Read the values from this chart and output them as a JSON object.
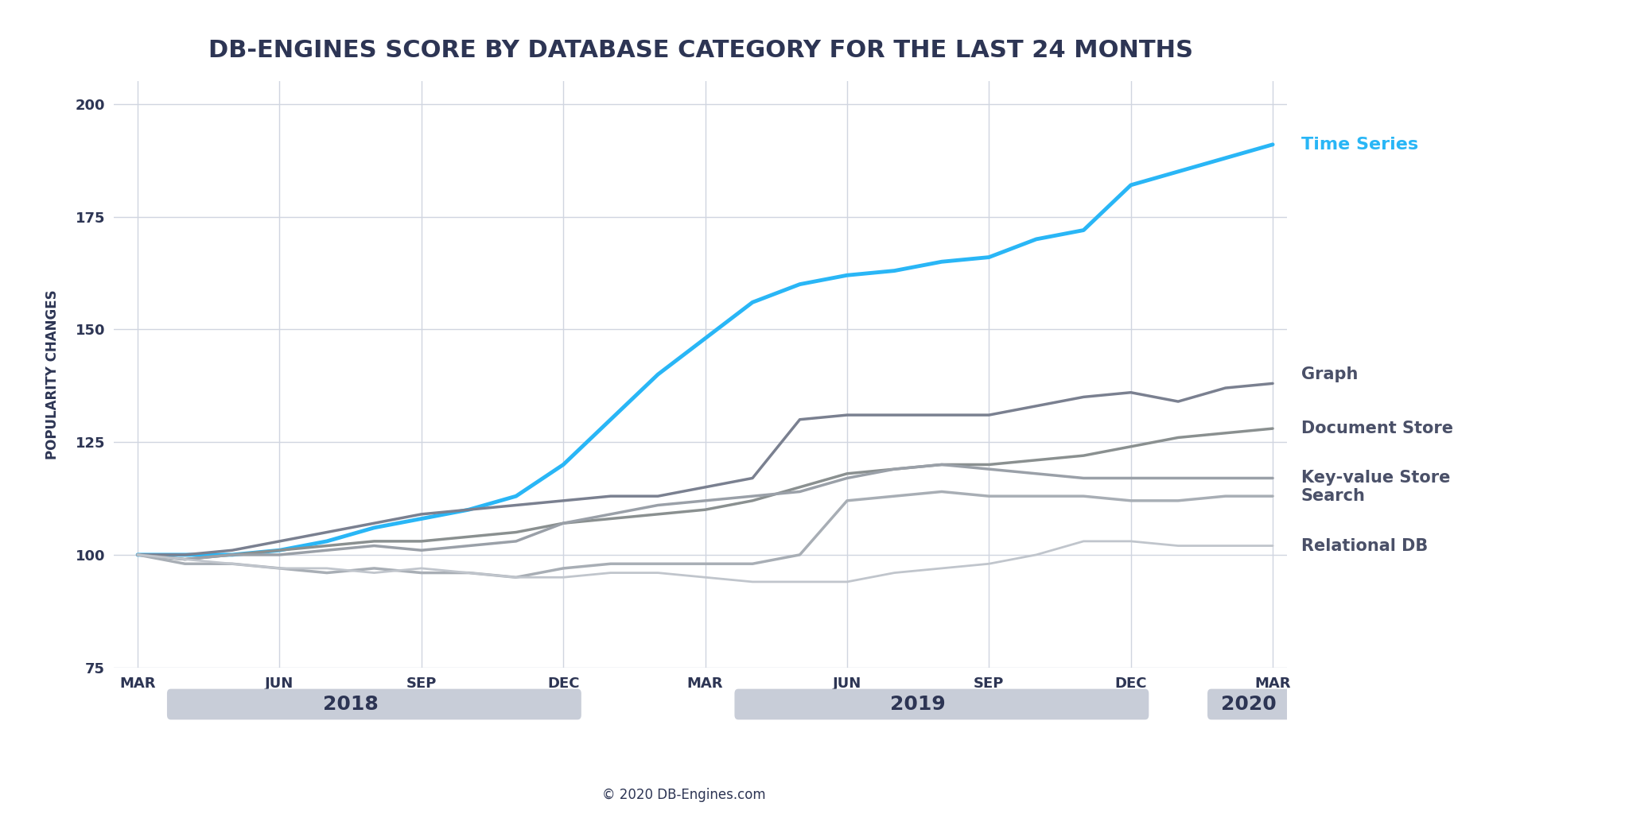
{
  "title": "DB-ENGINES SCORE BY DATABASE CATEGORY FOR THE LAST 24 MONTHS",
  "ylabel": "POPULARITY CHANGES",
  "copyright": "© 2020 DB-Engines.com",
  "ylim": [
    75,
    205
  ],
  "yticks": [
    75,
    100,
    125,
    150,
    175,
    200
  ],
  "background_color": "#ffffff",
  "grid_color": "#d0d5e0",
  "x_months": [
    0,
    1,
    2,
    3,
    4,
    5,
    6,
    7,
    8,
    9,
    10,
    11,
    12,
    13,
    14,
    15,
    16,
    17,
    18,
    19,
    20,
    21,
    22,
    23,
    24
  ],
  "x_tick_positions": [
    0,
    3,
    6,
    9,
    12,
    15,
    18,
    21,
    24
  ],
  "x_tick_labels": [
    "MAR",
    "JUN",
    "SEP",
    "DEC",
    "MAR",
    "JUN",
    "SEP",
    "DEC",
    "MAR"
  ],
  "year_labels": [
    {
      "text": "2018",
      "x_center": 4.5,
      "x_start": 0.7,
      "x_end": 9.3
    },
    {
      "text": "2019",
      "x_center": 16.5,
      "x_start": 12.7,
      "x_end": 21.3
    },
    {
      "text": "2020",
      "x_center": 23.5,
      "x_start": 22.7,
      "x_end": 24.5
    }
  ],
  "series": [
    {
      "name": "Time Series",
      "color": "#29b6f6",
      "linewidth": 3.5,
      "data": [
        100,
        100,
        100,
        101,
        103,
        106,
        108,
        110,
        113,
        120,
        130,
        140,
        148,
        156,
        160,
        162,
        163,
        165,
        166,
        170,
        172,
        182,
        185,
        188,
        191
      ]
    },
    {
      "name": "Graph",
      "color": "#7a8090",
      "linewidth": 2.5,
      "data": [
        100,
        100,
        101,
        103,
        105,
        107,
        109,
        110,
        111,
        112,
        113,
        113,
        115,
        117,
        130,
        131,
        131,
        131,
        131,
        133,
        135,
        136,
        134,
        137,
        138
      ]
    },
    {
      "name": "Document Store",
      "color": "#8a9090",
      "linewidth": 2.5,
      "data": [
        100,
        99,
        100,
        101,
        102,
        103,
        103,
        104,
        105,
        107,
        108,
        109,
        110,
        112,
        115,
        118,
        119,
        120,
        120,
        121,
        122,
        124,
        126,
        127,
        128
      ]
    },
    {
      "name": "Key-value Store",
      "color": "#9aa0a8",
      "linewidth": 2.5,
      "data": [
        100,
        99,
        100,
        100,
        101,
        102,
        101,
        102,
        103,
        107,
        109,
        111,
        112,
        113,
        114,
        117,
        119,
        120,
        119,
        118,
        117,
        117,
        117,
        117,
        117
      ]
    },
    {
      "name": "Search",
      "color": "#a8aeb5",
      "linewidth": 2.5,
      "data": [
        100,
        98,
        98,
        97,
        96,
        97,
        96,
        96,
        95,
        97,
        98,
        98,
        98,
        98,
        100,
        112,
        113,
        114,
        113,
        113,
        113,
        112,
        112,
        113,
        113
      ]
    },
    {
      "name": "Relational DB",
      "color": "#c0c5cc",
      "linewidth": 2.0,
      "data": [
        100,
        99,
        98,
        97,
        97,
        96,
        97,
        96,
        95,
        95,
        96,
        96,
        95,
        94,
        94,
        94,
        96,
        97,
        98,
        100,
        103,
        103,
        102,
        102,
        102
      ]
    }
  ],
  "title_color": "#2d3554",
  "axis_label_color": "#2d3554",
  "tick_label_color": "#2d3554",
  "year_label_color": "#2d3554",
  "year_bar_color": "#c8cdd8",
  "legend_color_time_series": "#29b6f6",
  "legend_color_others": "#4a5068",
  "title_fontsize": 22,
  "ylabel_fontsize": 12,
  "tick_fontsize": 13,
  "year_fontsize": 18,
  "legend_fontsize": 15,
  "copyright_fontsize": 12,
  "xlim_left": -0.5,
  "xlim_right": 24.3
}
